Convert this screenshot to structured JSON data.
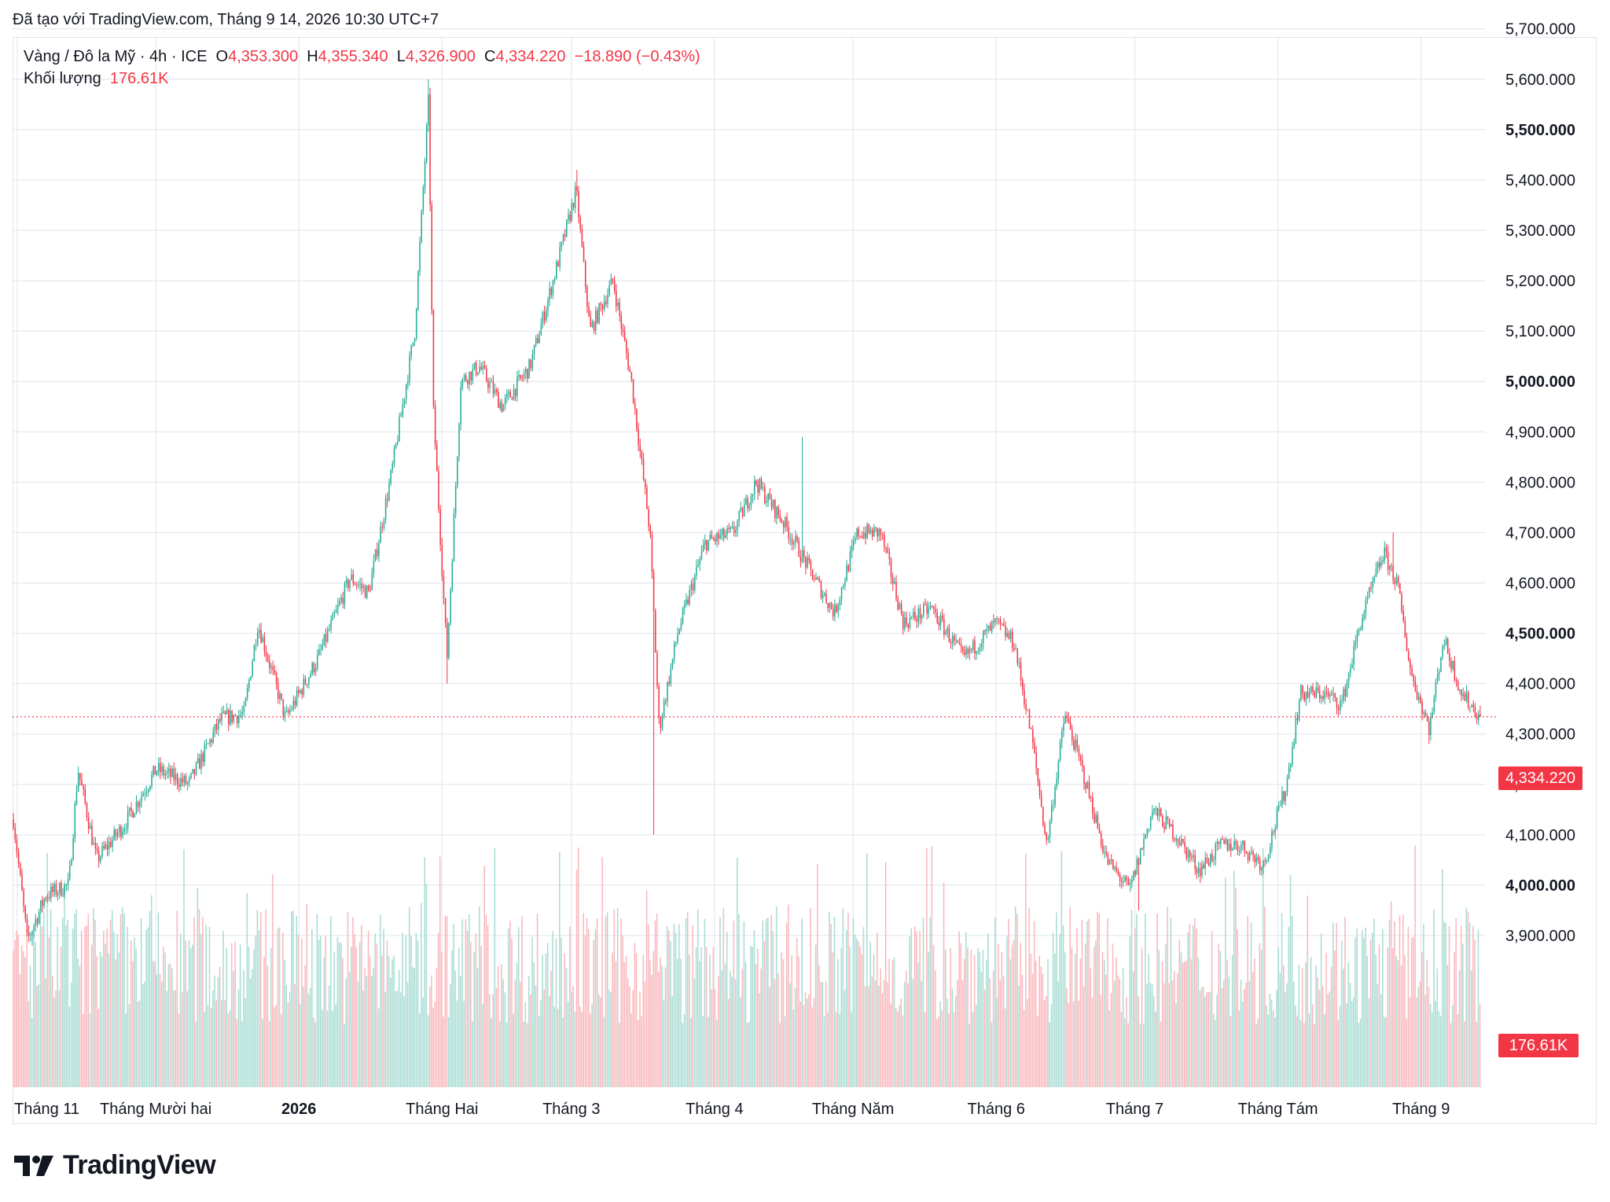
{
  "caption": "Đã tạo với TradingView.com, Tháng 9 14, 2026 10:30 UTC+7",
  "legend": {
    "symbol": "Vàng / Đô la Mỹ · 4h · ICE",
    "o_label": "O",
    "o_value": "4,353.300",
    "h_label": "H",
    "h_value": "4,355.340",
    "l_label": "L",
    "l_value": "4,326.900",
    "c_label": "C",
    "c_value": "4,334.220",
    "change": "−18.890 (−0.43%)",
    "volume_label": "Khối lượng",
    "volume_value": "176.61K"
  },
  "last_price_tag": "4,334.220",
  "volume_tag": "176.61K",
  "brand": {
    "name": "TradingView",
    "logo_icon": "tradingview-logo-icon"
  },
  "colors": {
    "up": "#22ab94",
    "down": "#f23645",
    "grid": "#e0e3eb",
    "volume_up": "#a8dcd3",
    "volume_down": "#f9b7bc"
  },
  "chart_data": {
    "type": "candlestick",
    "y_axis_side": "right",
    "ylim": [
      3830,
      5800
    ],
    "y_ticks": [
      "3,900.000",
      "4,000.000",
      "4,100.000",
      "4,200.000",
      "4,300.000",
      "4,400.000",
      "4,500.000",
      "4,600.000",
      "4,700.000",
      "4,800.000",
      "4,900.000",
      "5,000.000",
      "5,100.000",
      "5,200.000",
      "5,300.000",
      "5,400.000",
      "5,500.000",
      "5,600.000",
      "5,700.000"
    ],
    "y_tick_values": [
      3900,
      4000,
      4100,
      4200,
      4300,
      4400,
      4500,
      4600,
      4700,
      4800,
      4900,
      5000,
      5100,
      5200,
      5300,
      5400,
      5500,
      5600,
      5700
    ],
    "bold_ticks": [
      4000,
      4500,
      5000,
      5500
    ],
    "x_ticks": [
      {
        "label": "Tháng 11",
        "date": "2025-11-01",
        "bold": false
      },
      {
        "label": "Tháng Mười hai",
        "date": "2025-12-01",
        "bold": false
      },
      {
        "label": "2026",
        "date": "2026-01-01",
        "bold": true
      },
      {
        "label": "Tháng Hai",
        "date": "2026-02-01",
        "bold": false
      },
      {
        "label": "Tháng 3",
        "date": "2026-03-01",
        "bold": false
      },
      {
        "label": "Tháng 4",
        "date": "2026-04-01",
        "bold": false
      },
      {
        "label": "Tháng Năm",
        "date": "2026-05-01",
        "bold": false
      },
      {
        "label": "Tháng 6",
        "date": "2026-06-01",
        "bold": false
      },
      {
        "label": "Tháng 7",
        "date": "2026-07-01",
        "bold": false
      },
      {
        "label": "Tháng Tám",
        "date": "2026-08-01",
        "bold": false
      },
      {
        "label": "Tháng 9",
        "date": "2026-09-01",
        "bold": false
      }
    ],
    "last_price": 4334.22,
    "approx_close_path": [
      {
        "date": "2025-10-31",
        "close": 4130
      },
      {
        "date": "2025-11-03",
        "close": 3890
      },
      {
        "date": "2025-11-07",
        "close": 3980
      },
      {
        "date": "2025-11-12",
        "close": 4000
      },
      {
        "date": "2025-11-14",
        "close": 4230
      },
      {
        "date": "2025-11-18",
        "close": 4050
      },
      {
        "date": "2025-11-24",
        "close": 4120
      },
      {
        "date": "2025-12-01",
        "close": 4230
      },
      {
        "date": "2025-12-08",
        "close": 4200
      },
      {
        "date": "2025-12-15",
        "close": 4330
      },
      {
        "date": "2025-12-20",
        "close": 4340
      },
      {
        "date": "2025-12-23",
        "close": 4520
      },
      {
        "date": "2025-12-29",
        "close": 4330
      },
      {
        "date": "2026-01-05",
        "close": 4450
      },
      {
        "date": "2026-01-12",
        "close": 4610
      },
      {
        "date": "2026-01-16",
        "close": 4580
      },
      {
        "date": "2026-01-21",
        "close": 4820
      },
      {
        "date": "2026-01-26",
        "close": 5100
      },
      {
        "date": "2026-01-29",
        "close": 5560
      },
      {
        "date": "2026-01-30",
        "close": 4950
      },
      {
        "date": "2026-02-02",
        "close": 4450
      },
      {
        "date": "2026-02-05",
        "close": 5000
      },
      {
        "date": "2026-02-09",
        "close": 5030
      },
      {
        "date": "2026-02-14",
        "close": 4950
      },
      {
        "date": "2026-02-20",
        "close": 5030
      },
      {
        "date": "2026-02-25",
        "close": 5200
      },
      {
        "date": "2026-03-02",
        "close": 5380
      },
      {
        "date": "2026-03-05",
        "close": 5100
      },
      {
        "date": "2026-03-10",
        "close": 5200
      },
      {
        "date": "2026-03-14",
        "close": 5000
      },
      {
        "date": "2026-03-18",
        "close": 4700
      },
      {
        "date": "2026-03-20",
        "close": 4310
      },
      {
        "date": "2026-03-24",
        "close": 4500
      },
      {
        "date": "2026-03-30",
        "close": 4680
      },
      {
        "date": "2026-04-05",
        "close": 4700
      },
      {
        "date": "2026-04-10",
        "close": 4800
      },
      {
        "date": "2026-04-16",
        "close": 4720
      },
      {
        "date": "2026-04-22",
        "close": 4620
      },
      {
        "date": "2026-04-27",
        "close": 4540
      },
      {
        "date": "2026-05-02",
        "close": 4700
      },
      {
        "date": "2026-05-07",
        "close": 4700
      },
      {
        "date": "2026-05-12",
        "close": 4520
      },
      {
        "date": "2026-05-18",
        "close": 4550
      },
      {
        "date": "2026-05-25",
        "close": 4450
      },
      {
        "date": "2026-06-01",
        "close": 4520
      },
      {
        "date": "2026-06-05",
        "close": 4480
      },
      {
        "date": "2026-06-09",
        "close": 4280
      },
      {
        "date": "2026-06-12",
        "close": 4080
      },
      {
        "date": "2026-06-16",
        "close": 4340
      },
      {
        "date": "2026-06-20",
        "close": 4220
      },
      {
        "date": "2026-06-25",
        "close": 4050
      },
      {
        "date": "2026-06-30",
        "close": 3990
      },
      {
        "date": "2026-07-05",
        "close": 4150
      },
      {
        "date": "2026-07-10",
        "close": 4100
      },
      {
        "date": "2026-07-15",
        "close": 4030
      },
      {
        "date": "2026-07-20",
        "close": 4080
      },
      {
        "date": "2026-07-24",
        "close": 4080
      },
      {
        "date": "2026-07-29",
        "close": 4040
      },
      {
        "date": "2026-08-03",
        "close": 4200
      },
      {
        "date": "2026-08-06",
        "close": 4380
      },
      {
        "date": "2026-08-11",
        "close": 4380
      },
      {
        "date": "2026-08-15",
        "close": 4360
      },
      {
        "date": "2026-08-19",
        "close": 4520
      },
      {
        "date": "2026-08-24",
        "close": 4660
      },
      {
        "date": "2026-08-27",
        "close": 4600
      },
      {
        "date": "2026-08-30",
        "close": 4420
      },
      {
        "date": "2026-09-03",
        "close": 4310
      },
      {
        "date": "2026-09-06",
        "close": 4490
      },
      {
        "date": "2026-09-10",
        "close": 4380
      },
      {
        "date": "2026-09-14",
        "close": 4334
      }
    ],
    "extremes": [
      {
        "date": "2025-11-04",
        "low": 3880
      },
      {
        "date": "2026-01-29",
        "high": 5600
      },
      {
        "date": "2026-02-02",
        "low": 4400
      },
      {
        "date": "2026-03-02",
        "high": 5420
      },
      {
        "date": "2026-03-19",
        "low": 4100
      },
      {
        "date": "2026-04-20",
        "high": 4890
      },
      {
        "date": "2026-07-02",
        "low": 3950
      },
      {
        "date": "2026-08-26",
        "high": 4700
      },
      {
        "date": "2026-09-03",
        "low": 4280
      }
    ]
  }
}
